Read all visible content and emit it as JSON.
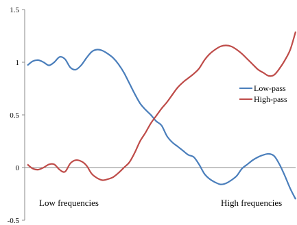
{
  "chart_data": {
    "type": "line",
    "title": "",
    "xlabel": "",
    "ylabel": "",
    "xlim": [
      0,
      100
    ],
    "ylim": [
      -0.5,
      1.5
    ],
    "yticks": [
      "-0.5",
      "0",
      "0.5",
      "1",
      "1.5"
    ],
    "yticks_values": [
      -0.5,
      0,
      0.5,
      1,
      1.5
    ],
    "grid": false,
    "legend_position": "right",
    "x": [
      0,
      2,
      4,
      6,
      8,
      10,
      12,
      14,
      16,
      18,
      20,
      22,
      24,
      26,
      28,
      30,
      32,
      34,
      36,
      38,
      40,
      42,
      44,
      46,
      48,
      50,
      52,
      54,
      56,
      58,
      60,
      62,
      64,
      66,
      68,
      70,
      72,
      74,
      76,
      78,
      80,
      82,
      84,
      86,
      88,
      90,
      92,
      94,
      96,
      98,
      100
    ],
    "series": [
      {
        "name": "Low-pass",
        "color": "#4a7ebb",
        "values": [
          0.97,
          1.01,
          1.02,
          1.0,
          0.97,
          1.0,
          1.05,
          1.03,
          0.95,
          0.93,
          0.97,
          1.04,
          1.1,
          1.12,
          1.11,
          1.08,
          1.04,
          0.98,
          0.9,
          0.8,
          0.7,
          0.61,
          0.55,
          0.5,
          0.44,
          0.4,
          0.3,
          0.24,
          0.2,
          0.16,
          0.12,
          0.1,
          0.03,
          -0.06,
          -0.11,
          -0.14,
          -0.16,
          -0.15,
          -0.12,
          -0.08,
          -0.01,
          0.03,
          0.07,
          0.1,
          0.12,
          0.13,
          0.11,
          0.03,
          -0.08,
          -0.2,
          -0.3
        ]
      },
      {
        "name": "High-pass",
        "color": "#be4b48",
        "values": [
          0.03,
          -0.01,
          -0.02,
          0.0,
          0.03,
          0.03,
          -0.02,
          -0.04,
          0.04,
          0.07,
          0.06,
          0.02,
          -0.06,
          -0.1,
          -0.12,
          -0.11,
          -0.09,
          -0.05,
          0.0,
          0.05,
          0.14,
          0.25,
          0.33,
          0.42,
          0.49,
          0.56,
          0.62,
          0.69,
          0.76,
          0.81,
          0.85,
          0.89,
          0.94,
          1.02,
          1.08,
          1.12,
          1.15,
          1.16,
          1.15,
          1.12,
          1.08,
          1.03,
          0.98,
          0.93,
          0.9,
          0.87,
          0.88,
          0.94,
          1.02,
          1.12,
          1.29
        ]
      }
    ],
    "annotations": {
      "left": "Low frequencies",
      "right": "High frequencies"
    }
  }
}
